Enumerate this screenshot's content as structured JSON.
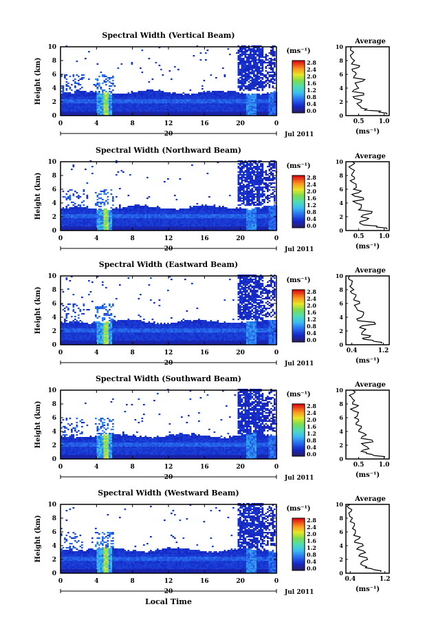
{
  "figure": {
    "xlabel": "Local Time",
    "date_label": "Jul 2011",
    "day_label": "20",
    "colorbar_unit": "(ms⁻¹)",
    "colorbar_ticks": [
      "2.8",
      "2.4",
      "2.0",
      "1.6",
      "1.2",
      "0.8",
      "0.4",
      "0.0"
    ],
    "profile_title": "Average",
    "profile_xlabel": "(ms⁻¹)",
    "ylabel": "Height (km)",
    "x_ticks": [
      "0",
      "4",
      "8",
      "12",
      "16",
      "20",
      "0"
    ],
    "y_ticks": [
      "0",
      "2",
      "4",
      "6",
      "8",
      "10"
    ]
  },
  "chart_data": [
    {
      "type": "heatmap",
      "title": "Spectral Width (Vertical Beam)",
      "xlabel": "Local Time",
      "ylabel": "Height (km)",
      "xlim": [
        0,
        24
      ],
      "ylim": [
        0,
        10
      ],
      "colorbar": {
        "label": "(ms⁻¹)",
        "range": [
          0.0,
          2.8
        ]
      },
      "profile": {
        "title": "Average",
        "xlabel": "(ms⁻¹)",
        "xticks": [
          "0.5",
          "1.0"
        ],
        "xlim": [
          0.25,
          1.1
        ],
        "height": [
          0.2,
          0.5,
          0.8,
          1.1,
          1.5,
          2.0,
          2.5,
          3.0,
          3.5,
          4.0,
          4.5,
          5.0,
          5.5,
          6.0,
          6.5,
          7.0,
          7.5,
          8.0,
          8.5,
          9.0,
          9.5,
          10.0
        ],
        "value": [
          1.05,
          0.9,
          0.62,
          0.55,
          0.5,
          0.55,
          0.42,
          0.6,
          0.38,
          0.5,
          0.45,
          0.58,
          0.4,
          0.45,
          0.38,
          0.5,
          0.36,
          0.42,
          0.35,
          0.38,
          0.34,
          0.36
        ]
      }
    },
    {
      "type": "heatmap",
      "title": "Spectral Width (Northward Beam)",
      "xlabel": "Local Time",
      "ylabel": "Height (km)",
      "xlim": [
        0,
        24
      ],
      "ylim": [
        0,
        10
      ],
      "colorbar": {
        "label": "(ms⁻¹)",
        "range": [
          0.0,
          2.8
        ]
      },
      "profile": {
        "title": "Average",
        "xlabel": "(ms⁻¹)",
        "xticks": [
          "0.5",
          "1.0"
        ],
        "xlim": [
          0.25,
          1.1
        ],
        "height": [
          0.2,
          0.5,
          0.8,
          1.1,
          1.5,
          2.0,
          2.5,
          3.0,
          3.5,
          4.0,
          4.5,
          5.0,
          5.5,
          6.0,
          6.5,
          7.0,
          7.5,
          8.0,
          8.5,
          9.0,
          9.5,
          10.0
        ],
        "value": [
          1.05,
          0.85,
          0.6,
          0.52,
          0.65,
          0.55,
          0.75,
          0.5,
          0.55,
          0.45,
          0.6,
          0.42,
          0.5,
          0.4,
          0.45,
          0.38,
          0.42,
          0.36,
          0.4,
          0.35,
          0.37,
          0.38
        ]
      }
    },
    {
      "type": "heatmap",
      "title": "Spectral Width (Eastward Beam)",
      "xlabel": "Local Time",
      "ylabel": "Height (km)",
      "xlim": [
        0,
        24
      ],
      "ylim": [
        0,
        10
      ],
      "colorbar": {
        "label": "(ms⁻¹)",
        "range": [
          0.0,
          2.8
        ]
      },
      "profile": {
        "title": "Average",
        "xlabel": "(ms⁻¹)",
        "xticks": [
          "0.4",
          "1.2"
        ],
        "xlim": [
          0.25,
          1.35
        ],
        "height": [
          0.2,
          0.5,
          0.8,
          1.1,
          1.5,
          2.0,
          2.5,
          3.0,
          3.5,
          4.0,
          4.5,
          5.0,
          5.5,
          6.0,
          6.5,
          7.0,
          7.5,
          8.0,
          8.5,
          9.0,
          9.5,
          10.0
        ],
        "value": [
          1.15,
          0.95,
          0.7,
          0.85,
          0.65,
          0.7,
          0.6,
          1.0,
          0.55,
          0.65,
          0.7,
          0.55,
          0.5,
          0.6,
          0.45,
          0.5,
          0.4,
          0.45,
          0.35,
          0.4,
          0.33,
          0.35
        ]
      }
    },
    {
      "type": "heatmap",
      "title": "Spectral Width (Southward Beam)",
      "xlabel": "Local Time",
      "ylabel": "Height (km)",
      "xlim": [
        0,
        24
      ],
      "ylim": [
        0,
        10
      ],
      "colorbar": {
        "label": "(ms⁻¹)",
        "range": [
          0.0,
          2.8
        ]
      },
      "profile": {
        "title": "Average",
        "xlabel": "(ms⁻¹)",
        "xticks": [
          "0.5",
          "1.0"
        ],
        "xlim": [
          0.25,
          1.1
        ],
        "height": [
          0.2,
          0.5,
          0.8,
          1.1,
          1.5,
          2.0,
          2.5,
          3.0,
          3.5,
          4.0,
          4.5,
          5.0,
          5.5,
          6.0,
          6.5,
          7.0,
          7.5,
          8.0,
          8.5,
          9.0,
          9.5,
          10.0
        ],
        "value": [
          1.0,
          0.8,
          0.65,
          0.55,
          0.7,
          0.6,
          0.78,
          0.55,
          0.65,
          0.5,
          0.55,
          0.45,
          0.5,
          0.42,
          0.48,
          0.4,
          0.44,
          0.38,
          0.42,
          0.36,
          0.4,
          0.38
        ]
      }
    },
    {
      "type": "heatmap",
      "title": "Spectral Width (Westward Beam)",
      "xlabel": "Local Time",
      "ylabel": "Height (km)",
      "xlim": [
        0,
        24
      ],
      "ylim": [
        0,
        10
      ],
      "colorbar": {
        "label": "(ms⁻¹)",
        "range": [
          0.0,
          2.8
        ]
      },
      "profile": {
        "title": "Average",
        "xlabel": "(ms⁻¹)",
        "xticks": [
          "0.4",
          "1.2"
        ],
        "xlim": [
          0.3,
          1.3
        ],
        "height": [
          0.2,
          0.5,
          0.8,
          1.1,
          1.5,
          2.0,
          2.5,
          3.0,
          3.5,
          4.0,
          4.5,
          5.0,
          5.5,
          6.0,
          6.5,
          7.0,
          7.5,
          8.0,
          8.5,
          9.0,
          9.5,
          10.0
        ],
        "value": [
          1.1,
          0.95,
          0.75,
          0.7,
          0.65,
          0.8,
          0.6,
          0.75,
          0.55,
          0.7,
          0.5,
          0.6,
          0.48,
          0.52,
          0.45,
          0.5,
          0.4,
          0.45,
          0.38,
          0.42,
          0.36,
          0.4
        ]
      }
    }
  ]
}
